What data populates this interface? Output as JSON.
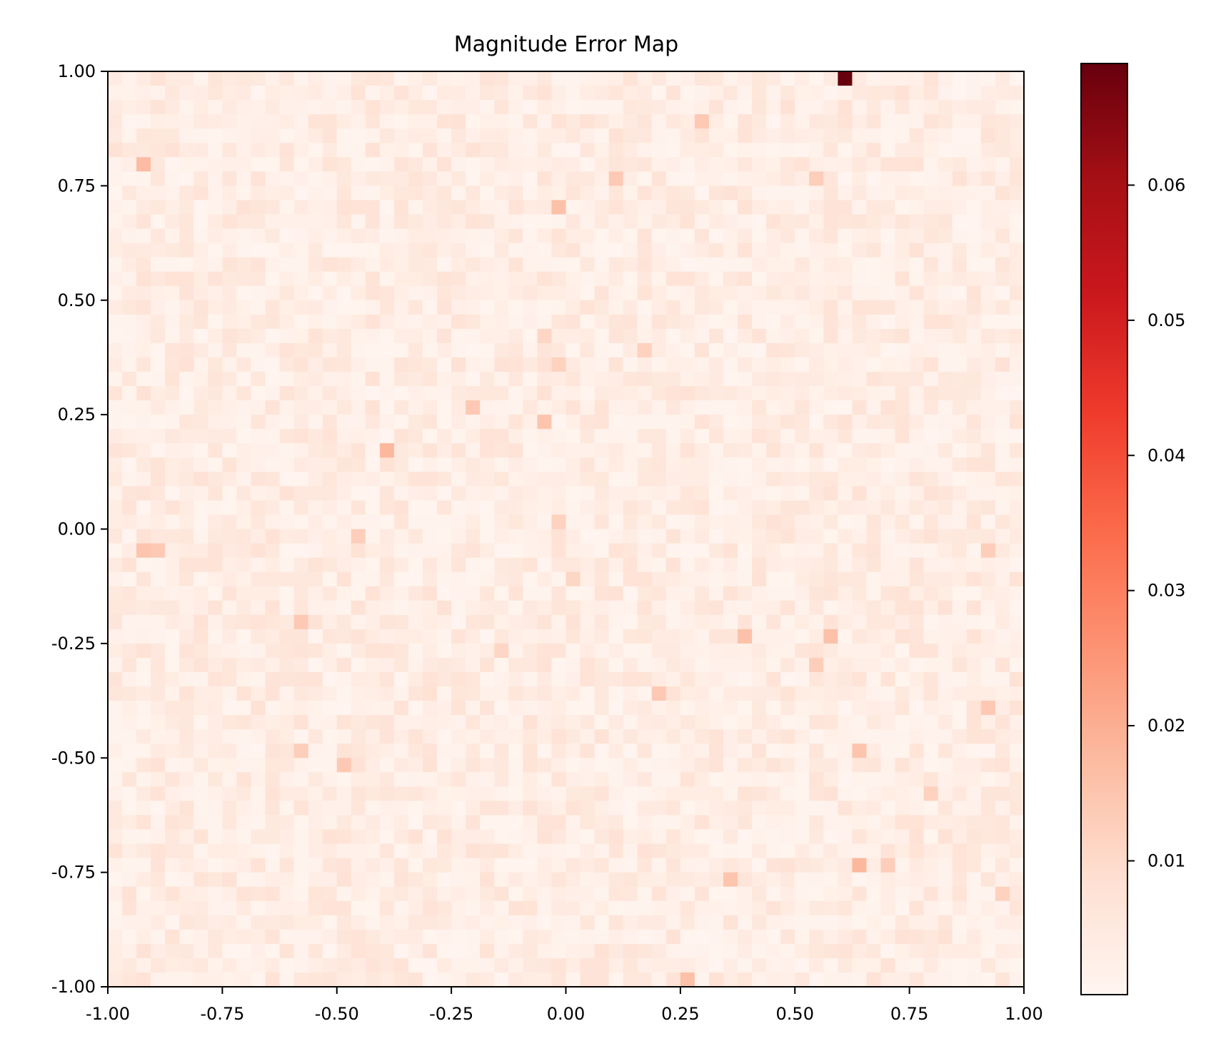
{
  "chart_data": {
    "type": "heatmap",
    "title": "Magnitude Error Map",
    "xlabel": "",
    "ylabel": "",
    "xlim": [
      -1.0,
      1.0
    ],
    "ylim": [
      -1.0,
      1.0
    ],
    "x_ticks": [
      "-1.00",
      "-0.75",
      "-0.50",
      "-0.25",
      "0.00",
      "0.25",
      "0.50",
      "0.75",
      "1.00"
    ],
    "y_ticks": [
      "1.00",
      "0.75",
      "0.50",
      "0.25",
      "0.00",
      "-0.25",
      "-0.50",
      "-0.75",
      "-1.00"
    ],
    "grid": false,
    "colormap": "Reds",
    "colorbar": {
      "ticks": [
        "0.01",
        "0.02",
        "0.03",
        "0.04",
        "0.05",
        "0.06"
      ],
      "tick_values": [
        0.01,
        0.02,
        0.03,
        0.04,
        0.05,
        0.06
      ],
      "vmin": 0.0001,
      "vmax": 0.069
    },
    "grid_size": [
      64,
      64
    ],
    "base_range": [
      0.0005,
      0.008
    ],
    "hotspots": [
      {
        "x": 0.61,
        "y": 0.98,
        "value": 0.069
      },
      {
        "x": -0.39,
        "y": 0.17,
        "value": 0.018
      },
      {
        "x": -0.92,
        "y": 0.8,
        "value": 0.017
      },
      {
        "x": -0.02,
        "y": 0.7,
        "value": 0.016
      },
      {
        "x": 0.3,
        "y": 0.89,
        "value": 0.014
      },
      {
        "x": 0.11,
        "y": 0.77,
        "value": 0.014
      },
      {
        "x": 0.55,
        "y": 0.76,
        "value": 0.013
      },
      {
        "x": -0.21,
        "y": 0.27,
        "value": 0.014
      },
      {
        "x": -0.05,
        "y": 0.23,
        "value": 0.015
      },
      {
        "x": -0.02,
        "y": 0.36,
        "value": 0.012
      },
      {
        "x": 0.17,
        "y": 0.4,
        "value": 0.012
      },
      {
        "x": -0.05,
        "y": 0.43,
        "value": 0.011
      },
      {
        "x": -0.02,
        "y": 0.02,
        "value": 0.012
      },
      {
        "x": -0.91,
        "y": -0.05,
        "value": 0.015
      },
      {
        "x": -0.88,
        "y": -0.04,
        "value": 0.014
      },
      {
        "x": -0.46,
        "y": -0.01,
        "value": 0.013
      },
      {
        "x": -0.58,
        "y": -0.2,
        "value": 0.014
      },
      {
        "x": 0.39,
        "y": -0.23,
        "value": 0.016
      },
      {
        "x": 0.58,
        "y": -0.23,
        "value": 0.016
      },
      {
        "x": 0.54,
        "y": -0.3,
        "value": 0.013
      },
      {
        "x": 0.2,
        "y": -0.36,
        "value": 0.014
      },
      {
        "x": -0.5,
        "y": -0.52,
        "value": 0.014
      },
      {
        "x": -0.58,
        "y": -0.49,
        "value": 0.013
      },
      {
        "x": 0.64,
        "y": -0.49,
        "value": 0.015
      },
      {
        "x": 0.64,
        "y": -0.72,
        "value": 0.018
      },
      {
        "x": 0.7,
        "y": -0.72,
        "value": 0.013
      },
      {
        "x": 0.36,
        "y": -0.78,
        "value": 0.015
      },
      {
        "x": 0.92,
        "y": -0.04,
        "value": 0.013
      },
      {
        "x": 0.92,
        "y": -0.39,
        "value": 0.014
      },
      {
        "x": 0.27,
        "y": -0.98,
        "value": 0.016
      },
      {
        "x": 0.95,
        "y": -0.8,
        "value": 0.012
      },
      {
        "x": 0.79,
        "y": -0.58,
        "value": 0.012
      },
      {
        "x": 0.02,
        "y": -0.11,
        "value": 0.011
      },
      {
        "x": -0.15,
        "y": -0.26,
        "value": 0.011
      }
    ]
  }
}
